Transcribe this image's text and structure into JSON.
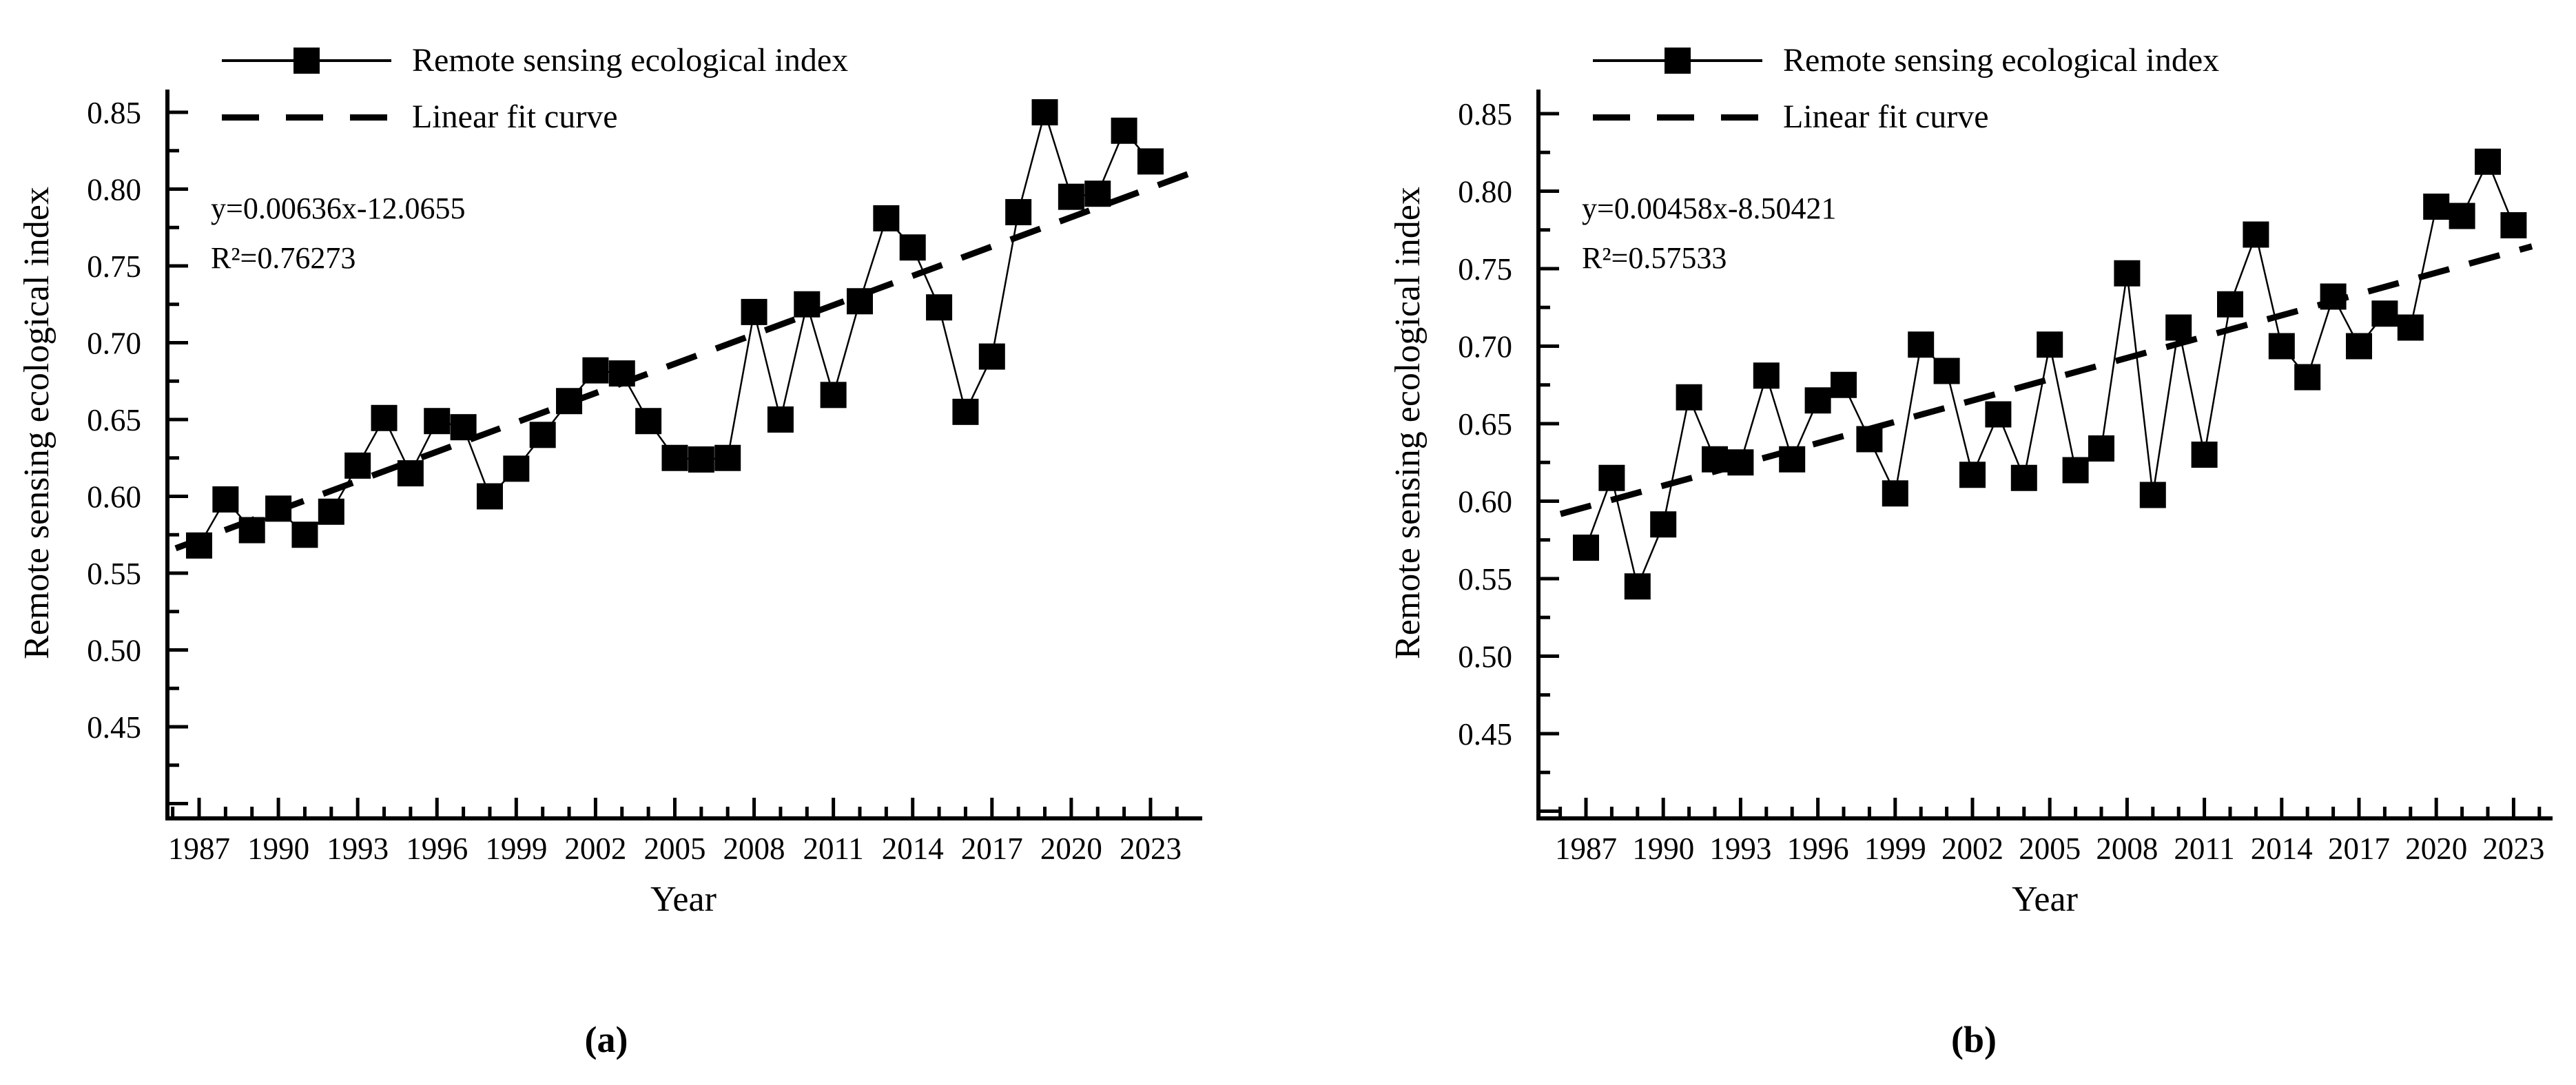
{
  "figure": {
    "background_color": "#ffffff",
    "line_color": "#000000",
    "x_tick_labels": [
      "1987",
      "1990",
      "1993",
      "1996",
      "1999",
      "2002",
      "2005",
      "2008",
      "2011",
      "2014",
      "2017",
      "2020",
      "2023"
    ],
    "y_tick_labels": [
      "0.85",
      "0.80",
      "0.75",
      "0.70",
      "0.65",
      "0.60",
      "0.55",
      "0.50",
      "0.45"
    ]
  },
  "panels": [
    {
      "id": "a",
      "panel_label": "(a)",
      "legend": {
        "series_label": "Remote sensing ecological index",
        "fit_label": "Linear fit curve"
      },
      "equation": "y=0.00636x-12.0655",
      "r_squared": "R²=0.76273",
      "chart_data": {
        "type": "line",
        "title": "",
        "xlabel": "Year",
        "ylabel": "Remote sensing ecological index",
        "x": [
          1987,
          1988,
          1989,
          1990,
          1991,
          1992,
          1993,
          1994,
          1995,
          1996,
          1997,
          1998,
          1999,
          2000,
          2001,
          2002,
          2003,
          2004,
          2005,
          2006,
          2007,
          2008,
          2009,
          2010,
          2011,
          2012,
          2013,
          2014,
          2015,
          2016,
          2017,
          2018,
          2019,
          2020,
          2021,
          2022,
          2023
        ],
        "series": [
          {
            "name": "Remote sensing ecological index",
            "marker": "square",
            "values": [
              0.568,
              0.598,
              0.578,
              0.592,
              0.575,
              0.59,
              0.62,
              0.651,
              0.615,
              0.649,
              0.645,
              0.6,
              0.618,
              0.64,
              0.662,
              0.682,
              0.68,
              0.649,
              0.625,
              0.624,
              0.625,
              0.72,
              0.65,
              0.725,
              0.666,
              0.727,
              0.781,
              0.762,
              0.723,
              0.655,
              0.691,
              0.785,
              0.85,
              0.795,
              0.797,
              0.838,
              0.818
            ]
          },
          {
            "name": "Linear fit curve",
            "style": "dashed",
            "fit": {
              "slope": 0.00636,
              "intercept": -12.0655
            }
          }
        ],
        "xlim": [
          1985.8,
          2025.2
        ],
        "ylim": [
          0.4,
          0.865
        ],
        "y_tick_step": 0.05,
        "y_minor_step": 0.025,
        "x_tick_step": 3,
        "x_minor_step": 1,
        "grid": false,
        "legend_position": "top-left"
      }
    },
    {
      "id": "b",
      "panel_label": "(b)",
      "legend": {
        "series_label": "Remote sensing ecological index",
        "fit_label": "Linear fit curve"
      },
      "equation": "y=0.00458x-8.50421",
      "r_squared": "R²=0.57533",
      "chart_data": {
        "type": "line",
        "title": "",
        "xlabel": "Year",
        "ylabel": "Remote sensing ecological index",
        "x": [
          1987,
          1988,
          1989,
          1990,
          1991,
          1992,
          1993,
          1994,
          1995,
          1996,
          1997,
          1998,
          1999,
          2000,
          2001,
          2002,
          2003,
          2004,
          2005,
          2006,
          2007,
          2008,
          2009,
          2010,
          2011,
          2012,
          2013,
          2014,
          2015,
          2016,
          2017,
          2018,
          2019,
          2020,
          2021,
          2022,
          2023
        ],
        "series": [
          {
            "name": "Remote sensing ecological index",
            "marker": "square",
            "values": [
              0.57,
              0.615,
              0.545,
              0.585,
              0.667,
              0.627,
              0.625,
              0.681,
              0.627,
              0.665,
              0.675,
              0.64,
              0.605,
              0.701,
              0.684,
              0.617,
              0.656,
              0.615,
              0.701,
              0.62,
              0.634,
              0.747,
              0.604,
              0.712,
              0.63,
              0.727,
              0.772,
              0.7,
              0.68,
              0.732,
              0.7,
              0.721,
              0.712,
              0.79,
              0.784,
              0.819,
              0.778
            ]
          },
          {
            "name": "Linear fit curve",
            "style": "dashed",
            "fit": {
              "slope": 0.00458,
              "intercept": -8.50421
            }
          }
        ],
        "xlim": [
          1985.8,
          2025.2
        ],
        "ylim": [
          0.4,
          0.865
        ],
        "y_tick_step": 0.05,
        "y_minor_step": 0.025,
        "x_tick_step": 3,
        "x_minor_step": 1,
        "grid": false,
        "legend_position": "top-left"
      }
    }
  ]
}
